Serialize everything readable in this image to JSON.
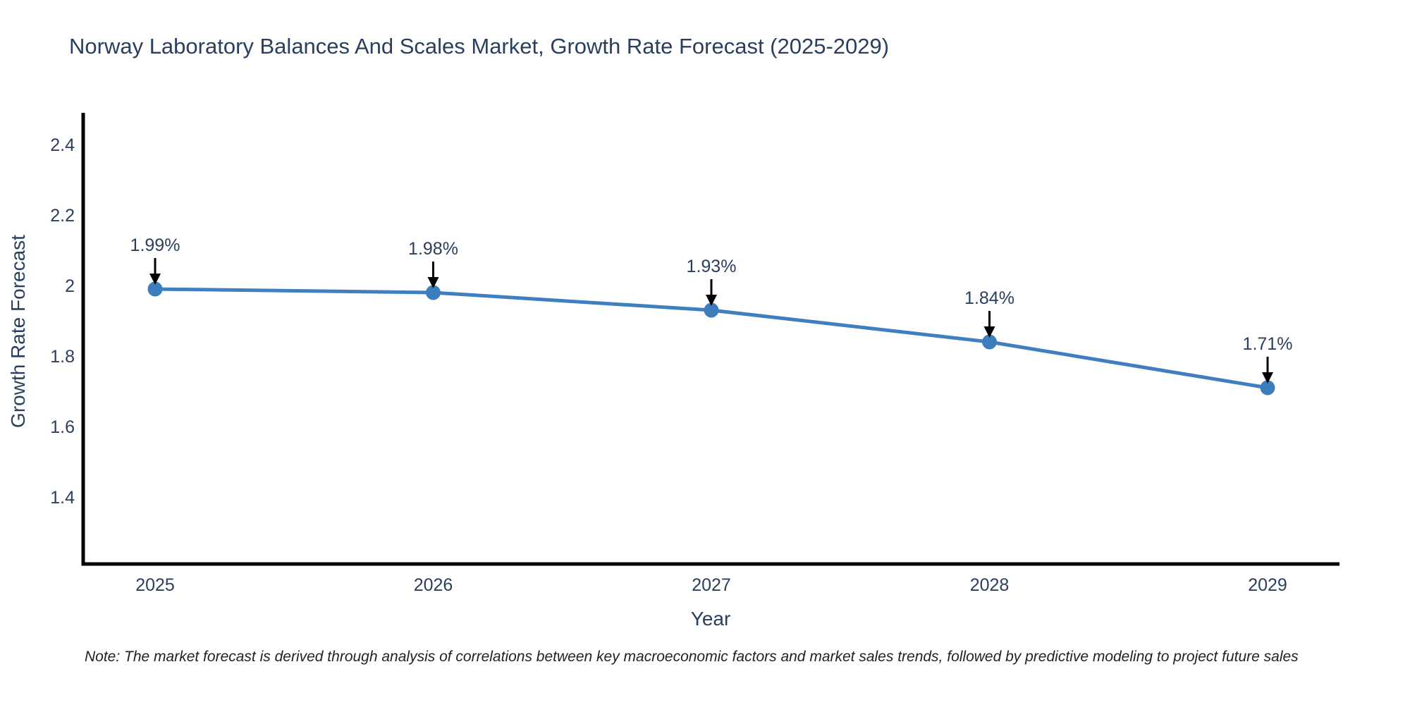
{
  "page": {
    "note": "Note: The market forecast is derived through analysis of correlations between key macroeconomic factors and market sales trends, followed by predictive modeling to project future sales"
  },
  "chart_data": {
    "type": "line",
    "title": "Norway Laboratory Balances And Scales Market, Growth Rate Forecast (2025-2029)",
    "xlabel": "Year",
    "ylabel": "Growth Rate Forecast",
    "categories": [
      "2025",
      "2026",
      "2027",
      "2028",
      "2029"
    ],
    "series": [
      {
        "name": "Growth Rate Forecast",
        "values": [
          1.99,
          1.98,
          1.93,
          1.84,
          1.71
        ],
        "point_labels": [
          "1.99%",
          "1.98%",
          "1.93%",
          "1.84%",
          "1.71%"
        ]
      }
    ],
    "ylim": [
      1.21,
      2.49
    ],
    "y_ticks": [
      "1.4",
      "1.6",
      "1.8",
      "2",
      "2.2",
      "2.4"
    ],
    "grid": false,
    "legend": "none",
    "line_color": "#3f7fbf",
    "marker_color": "#3c7dbc",
    "annotation_arrow_color": "#000000",
    "axis_line_color": "#000000",
    "text_color": "#2a3f5f"
  }
}
